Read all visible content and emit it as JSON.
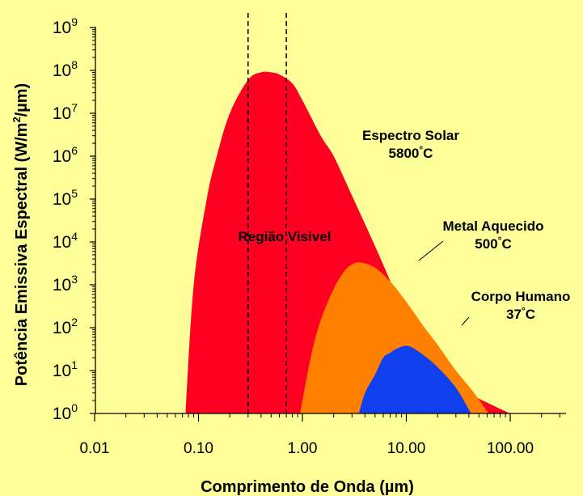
{
  "chart_data": {
    "type": "area",
    "x_scale": "log",
    "y_scale": "log",
    "xlabel_text": "Comprimento de Onda",
    "xlabel_unit": "(µm)",
    "ylabel_prefix": "Potência Emissiva Espectral  (W/m",
    "ylabel_sup": "2",
    "ylabel_suffix": "/µm)",
    "xlim": [
      0.01,
      200
    ],
    "ylim": [
      1,
      1000000000
    ],
    "x_ticks": [
      {
        "value": 0.01,
        "label": "0.01"
      },
      {
        "value": 0.1,
        "label": "0.10"
      },
      {
        "value": 1,
        "label": "1.00"
      },
      {
        "value": 10,
        "label": "10.00"
      },
      {
        "value": 100,
        "label": "100.00"
      }
    ],
    "y_ticks": [
      {
        "exp": 0,
        "base": "10",
        "sup": "0"
      },
      {
        "exp": 1,
        "base": "10",
        "sup": "1"
      },
      {
        "exp": 2,
        "base": "10",
        "sup": "2"
      },
      {
        "exp": 3,
        "base": "10",
        "sup": "3"
      },
      {
        "exp": 4,
        "base": "10",
        "sup": "4"
      },
      {
        "exp": 5,
        "base": "10",
        "sup": "5"
      },
      {
        "exp": 6,
        "base": "10",
        "sup": "6"
      },
      {
        "exp": 7,
        "base": "10",
        "sup": "7"
      },
      {
        "exp": 8,
        "base": "10",
        "sup": "8"
      },
      {
        "exp": 9,
        "base": "10",
        "sup": "9"
      }
    ],
    "visible_region": {
      "x": [
        0.3,
        0.7
      ],
      "label": "Região Visivel"
    },
    "series": [
      {
        "label_line1": "Espectro Solar",
        "label_line2": "5800",
        "label_unit": "C",
        "color": "#FF0022",
        "x": [
          0.075,
          0.09,
          0.12,
          0.15,
          0.2,
          0.3,
          0.4,
          0.5,
          0.6,
          0.8,
          1,
          1.5,
          2,
          3,
          5,
          8,
          10,
          20,
          40,
          70,
          100
        ],
        "y": [
          1,
          1000,
          100000,
          1000000,
          10000000,
          60000000,
          90000000,
          90000000,
          80000000,
          50000000,
          20000000,
          3000000,
          1000000,
          120000,
          8000,
          600,
          200,
          10,
          3,
          1.5,
          1
        ]
      },
      {
        "label_line1": "Metal Aquecido",
        "label_line2": "500",
        "label_unit": "C",
        "color": "#FF7F00",
        "x": [
          0.95,
          1.2,
          1.5,
          2,
          2.5,
          3,
          3.7,
          5,
          7,
          10,
          15,
          20,
          30,
          45,
          62
        ],
        "y": [
          1,
          20,
          150,
          800,
          2000,
          3000,
          3300,
          2500,
          1200,
          400,
          100,
          40,
          10,
          3,
          1
        ]
      },
      {
        "label_line1": "Corpo Humano",
        "label_line2": "37",
        "label_unit": "C",
        "color": "#1040EE",
        "x": [
          3.5,
          4,
          5,
          6,
          7,
          8,
          10,
          12,
          15,
          20,
          30,
          42
        ],
        "y": [
          1,
          3,
          8,
          20,
          26,
          32,
          38,
          32,
          22,
          12,
          4,
          1
        ]
      }
    ]
  }
}
